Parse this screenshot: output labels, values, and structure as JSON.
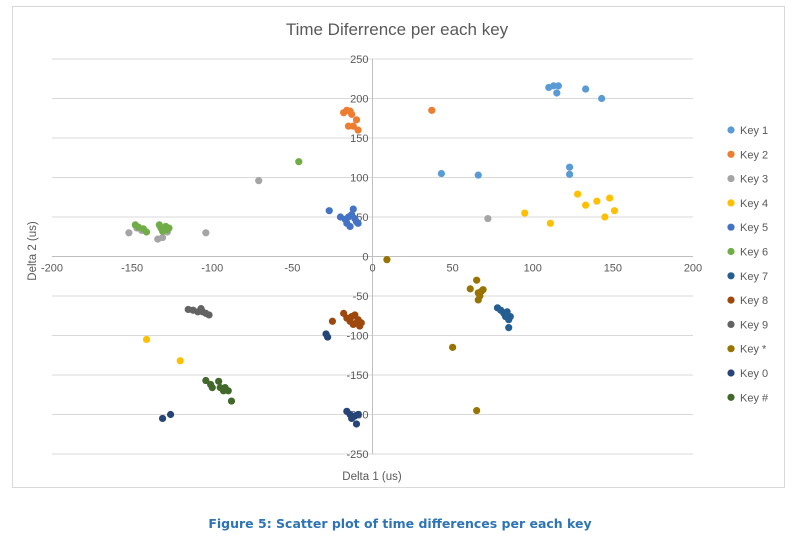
{
  "caption": "Figure 5: Scatter plot of time differences per each key",
  "chart_data": {
    "type": "scatter",
    "title": "Time Diferrence per each key",
    "xlabel": "Delta  1 (us)",
    "ylabel": "Delta 2 (us)",
    "xlim": [
      -200,
      200
    ],
    "ylim": [
      -250,
      250
    ],
    "xticks": [
      -200,
      -150,
      -100,
      -50,
      0,
      50,
      100,
      150,
      200
    ],
    "yticks": [
      -250,
      -200,
      -150,
      -100,
      -50,
      0,
      50,
      100,
      150,
      200,
      250
    ],
    "grid": "horizontal",
    "legend_position": "right",
    "series": [
      {
        "name": "Key 1",
        "color": "#5b9bd5",
        "points": [
          [
            110,
            214
          ],
          [
            113,
            216
          ],
          [
            116,
            216
          ],
          [
            115,
            207
          ],
          [
            133,
            212
          ],
          [
            143,
            200
          ],
          [
            43,
            105
          ],
          [
            66,
            103
          ],
          [
            123,
            113
          ],
          [
            123,
            104
          ]
        ]
      },
      {
        "name": "Key 2",
        "color": "#ed7d31",
        "points": [
          [
            -18,
            182
          ],
          [
            -16,
            185
          ],
          [
            -14,
            184
          ],
          [
            -13,
            180
          ],
          [
            -15,
            165
          ],
          [
            -12,
            165
          ],
          [
            -10,
            173
          ],
          [
            -9,
            160
          ],
          [
            37,
            185
          ]
        ]
      },
      {
        "name": "Key 3",
        "color": "#a5a5a5",
        "points": [
          [
            -71,
            96
          ],
          [
            72,
            48
          ],
          [
            -152,
            30
          ],
          [
            -147,
            36
          ],
          [
            -144,
            33
          ],
          [
            -134,
            22
          ],
          [
            -131,
            24
          ],
          [
            -128,
            31
          ],
          [
            -104,
            30
          ]
        ]
      },
      {
        "name": "Key 4",
        "color": "#ffc000",
        "points": [
          [
            95,
            55
          ],
          [
            111,
            42
          ],
          [
            128,
            79
          ],
          [
            133,
            65
          ],
          [
            140,
            70
          ],
          [
            145,
            50
          ],
          [
            148,
            74
          ],
          [
            151,
            58
          ],
          [
            -141,
            -105
          ],
          [
            -120,
            -132
          ]
        ]
      },
      {
        "name": "Key 5",
        "color": "#4472c4",
        "points": [
          [
            -27,
            58
          ],
          [
            -20,
            50
          ],
          [
            -17,
            47
          ],
          [
            -16,
            42
          ],
          [
            -15,
            50
          ],
          [
            -14,
            38
          ],
          [
            -13,
            53
          ],
          [
            -12,
            60
          ],
          [
            -11,
            48
          ],
          [
            -10,
            44
          ],
          [
            -9,
            42
          ]
        ]
      },
      {
        "name": "Key 6",
        "color": "#70ad47",
        "points": [
          [
            -46,
            120
          ],
          [
            -148,
            40
          ],
          [
            -146,
            37
          ],
          [
            -143,
            35
          ],
          [
            -141,
            31
          ],
          [
            -133,
            40
          ],
          [
            -132,
            36
          ],
          [
            -131,
            32
          ],
          [
            -129,
            38
          ],
          [
            -128,
            34
          ],
          [
            -127,
            36
          ]
        ]
      },
      {
        "name": "Key 7",
        "color": "#255e91",
        "points": [
          [
            78,
            -65
          ],
          [
            80,
            -68
          ],
          [
            82,
            -72
          ],
          [
            83,
            -76
          ],
          [
            84,
            -70
          ],
          [
            85,
            -80
          ],
          [
            85,
            -90
          ],
          [
            86,
            -76
          ],
          [
            84,
            -74
          ]
        ]
      },
      {
        "name": "Key 8",
        "color": "#9e480e",
        "points": [
          [
            -25,
            -82
          ],
          [
            -18,
            -72
          ],
          [
            -16,
            -78
          ],
          [
            -14,
            -82
          ],
          [
            -13,
            -76
          ],
          [
            -12,
            -86
          ],
          [
            -11,
            -74
          ],
          [
            -10,
            -84
          ],
          [
            -9,
            -80
          ],
          [
            -8,
            -88
          ],
          [
            -7,
            -84
          ]
        ]
      },
      {
        "name": "Key 9",
        "color": "#636363",
        "points": [
          [
            -115,
            -67
          ],
          [
            -112,
            -68
          ],
          [
            -109,
            -70
          ],
          [
            -107,
            -66
          ],
          [
            -106,
            -70
          ],
          [
            -104,
            -72
          ],
          [
            -102,
            -74
          ]
        ]
      },
      {
        "name": "Key *",
        "color": "#997300",
        "points": [
          [
            9,
            -4
          ],
          [
            61,
            -41
          ],
          [
            65,
            -30
          ],
          [
            66,
            -46
          ],
          [
            66,
            -55
          ],
          [
            67,
            -50
          ],
          [
            68,
            -44
          ],
          [
            69,
            -42
          ],
          [
            50,
            -115
          ],
          [
            65,
            -195
          ]
        ]
      },
      {
        "name": "Key 0",
        "color": "#264478",
        "points": [
          [
            -131,
            -205
          ],
          [
            -126,
            -200
          ],
          [
            -29,
            -98
          ],
          [
            -28,
            -102
          ],
          [
            -16,
            -196
          ],
          [
            -14,
            -200
          ],
          [
            -13,
            -205
          ],
          [
            -11,
            -202
          ],
          [
            -10,
            -212
          ],
          [
            -9,
            -200
          ]
        ]
      },
      {
        "name": "Key #",
        "color": "#43682b",
        "points": [
          [
            -104,
            -157
          ],
          [
            -101,
            -162
          ],
          [
            -100,
            -166
          ],
          [
            -96,
            -158
          ],
          [
            -95,
            -166
          ],
          [
            -93,
            -170
          ],
          [
            -92,
            -166
          ],
          [
            -90,
            -170
          ],
          [
            -88,
            -183
          ]
        ]
      }
    ]
  }
}
